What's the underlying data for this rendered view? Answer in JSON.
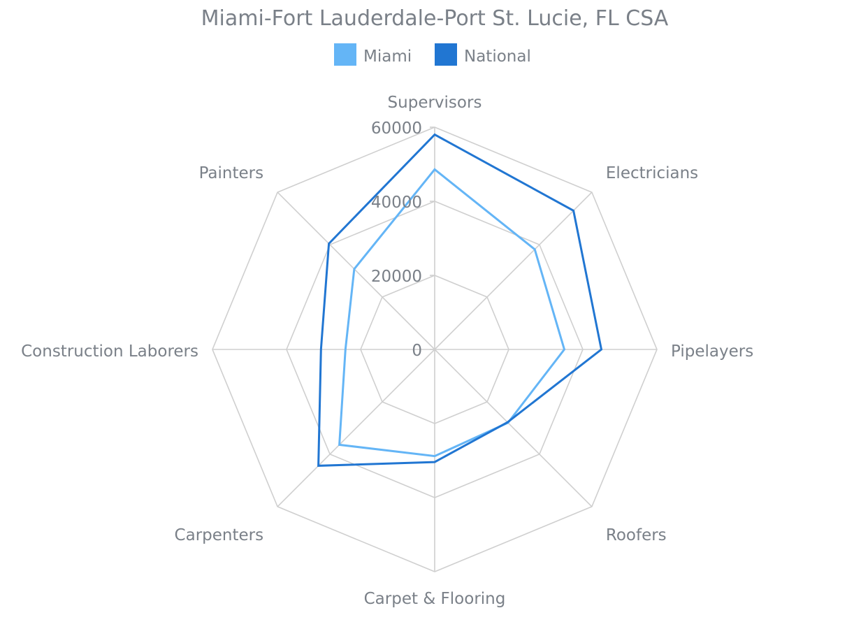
{
  "chart_data": {
    "type": "radar",
    "title": "Miami-Fort Lauderdale-Port St. Lucie, FL CSA",
    "categories": [
      "Supervisors",
      "Electricians",
      "Pipelayers",
      "Roofers",
      "Carpet & Flooring",
      "Carpenters",
      "Construction Laborers",
      "Painters"
    ],
    "series": [
      {
        "name": "Miami",
        "color": "#64b5f6",
        "values": [
          48600,
          38200,
          35000,
          28000,
          28800,
          36400,
          24100,
          30700
        ]
      },
      {
        "name": "National",
        "color": "#2176d2",
        "values": [
          58000,
          53000,
          45000,
          27800,
          30400,
          44400,
          30700,
          40400
        ]
      }
    ],
    "radial_ticks": [
      "0",
      "20000",
      "40000",
      "60000"
    ],
    "rmax": 60000,
    "legend_position": "top-center",
    "grid": true
  }
}
